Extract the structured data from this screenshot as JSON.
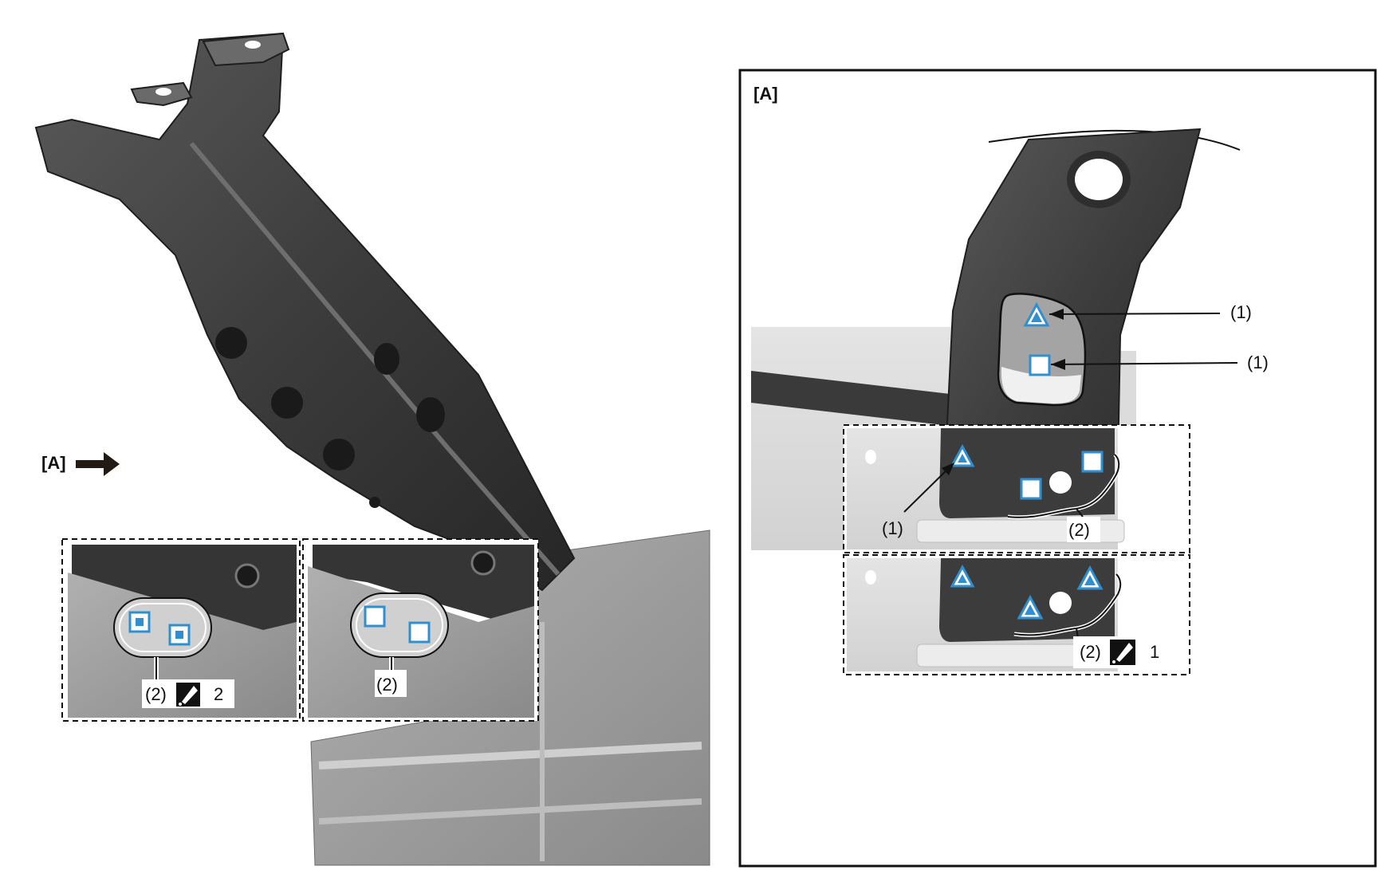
{
  "overview": {
    "view_label": "[A]",
    "arrow_icon": "right-arrow-icon",
    "inset_left": {
      "callout": "(2)",
      "tool_icon": "spot-weld-gun-icon",
      "count": "2"
    },
    "inset_right": {
      "callout": "(2)"
    }
  },
  "detail": {
    "title": "[A]",
    "callout_top_1": "(1)",
    "callout_top_2": "(1)",
    "inset_upper": {
      "callout_1": "(1)",
      "callout_2": "(2)"
    },
    "inset_lower": {
      "callout": "(2)",
      "tool_icon": "spot-weld-gun-icon",
      "count": "1"
    }
  },
  "colors": {
    "marker_blue": "#2f8fd0",
    "part_dark": "#3a3a3a",
    "part_grey": "#9c9c9c",
    "line": "#111111"
  }
}
